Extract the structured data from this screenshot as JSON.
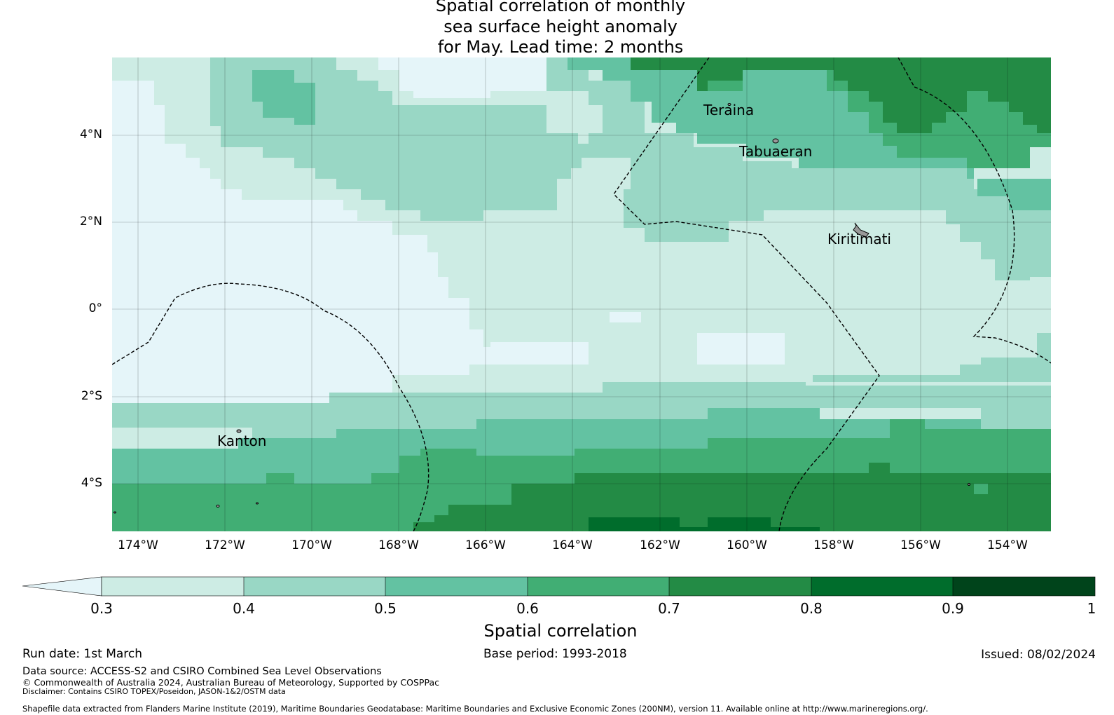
{
  "title": {
    "line1": "Spatial correlation of monthly",
    "line2": "sea surface height anomaly",
    "line3": "for May. Lead time: 2 months"
  },
  "axes": {
    "y_ticks": [
      "4°N",
      "2°N",
      "0°",
      "2°S",
      "4°S"
    ],
    "x_ticks": [
      "174°W",
      "172°W",
      "170°W",
      "168°W",
      "166°W",
      "164°W",
      "162°W",
      "160°W",
      "158°W",
      "156°W",
      "154°W"
    ]
  },
  "places": [
    {
      "name": "Teraina",
      "lon": -159.4,
      "lat": 4.7
    },
    {
      "name": "Tabuaeran",
      "lon": -159.3,
      "lat": 3.8
    },
    {
      "name": "Kiritimati",
      "lon": -157.4,
      "lat": 1.9
    },
    {
      "name": "Kanton",
      "lon": -171.7,
      "lat": -2.8
    }
  ],
  "colors": {
    "c03": "#cdece4",
    "c04": "#99d7c5",
    "c05": "#63c2a2",
    "c06": "#41ae74",
    "c07": "#238b45",
    "c08": "#006d2c",
    "c09": "#00441b",
    "below": "#e5f5f9"
  },
  "colorbar": {
    "ticks": [
      "0.3",
      "0.4",
      "0.5",
      "0.6",
      "0.7",
      "0.8",
      "0.9",
      "1"
    ],
    "label": "Spatial correlation"
  },
  "footer": {
    "run_date": "Run date: 1st March",
    "base_period": "Base period: 1993-2018",
    "issued": "Issued: 08/02/2024",
    "data_source": "Data source: ACCESS-S2 and CSIRO Combined Sea Level Observations",
    "copyright": "© Commonwealth of Australia 2024, Australian Bureau of Meteorology, Supported by COSPPac",
    "disclaimer": "Disclaimer: Contains CSIRO TOPEX/Poseidon, JASON-1&2/OSTM data",
    "shapefile": "Shapefile data extracted from Flanders Marine Institute (2019), Maritime Boundaries Geodatabase: Maritime Boundaries and Exclusive Economic Zones (200NM), version 11. Available online at http://www.marineregions.org/."
  }
}
